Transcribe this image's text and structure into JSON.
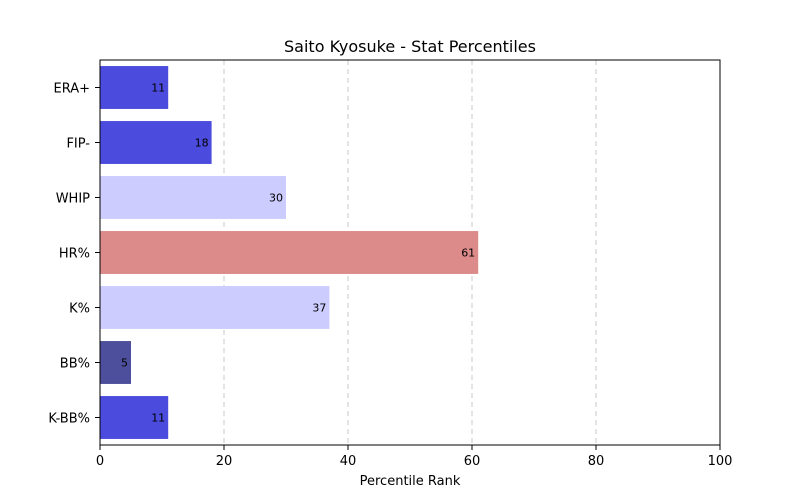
{
  "chart_data": {
    "type": "bar",
    "orientation": "horizontal",
    "title": "Saito Kyosuke - Stat Percentiles",
    "xlabel": "Percentile Rank",
    "ylabel": "",
    "xlim": [
      0,
      100
    ],
    "x_ticks": [
      0,
      20,
      40,
      60,
      80,
      100
    ],
    "grid": "vertical-dashed",
    "categories": [
      "ERA+",
      "FIP-",
      "WHIP",
      "HR%",
      "K%",
      "BB%",
      "K-BB%"
    ],
    "values": [
      11,
      18,
      30,
      61,
      37,
      5,
      11
    ],
    "bar_colors": [
      "#4b4bdd",
      "#4b4bdd",
      "#ccccff",
      "#dd8a8a",
      "#ccccff",
      "#4e4f9c",
      "#4b4bdd"
    ]
  }
}
